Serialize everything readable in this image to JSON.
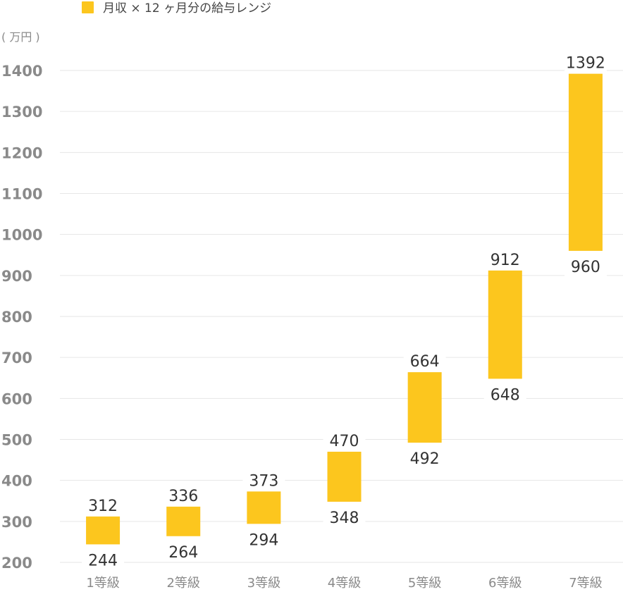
{
  "chart_data": {
    "type": "bar",
    "subtype": "floating-range",
    "legend": {
      "label": "月収 × 12 ヶ月分の給与レンジ",
      "color": "#FCC61E",
      "position": "top-left"
    },
    "unit_label": "( 万円 )",
    "categories": [
      "1等級",
      "2等級",
      "3等級",
      "4等級",
      "5等級",
      "6等級",
      "7等級"
    ],
    "series": [
      {
        "low": [
          244,
          264,
          294,
          348,
          492,
          648,
          960
        ],
        "high": [
          312,
          336,
          373,
          470,
          664,
          912,
          1392
        ]
      }
    ],
    "ylim": [
      200,
      1400
    ],
    "yticks": [
      200,
      300,
      400,
      500,
      600,
      700,
      800,
      900,
      1000,
      1100,
      1200,
      1300,
      1400
    ],
    "grid": true,
    "bar_color": "#FCC61E"
  }
}
